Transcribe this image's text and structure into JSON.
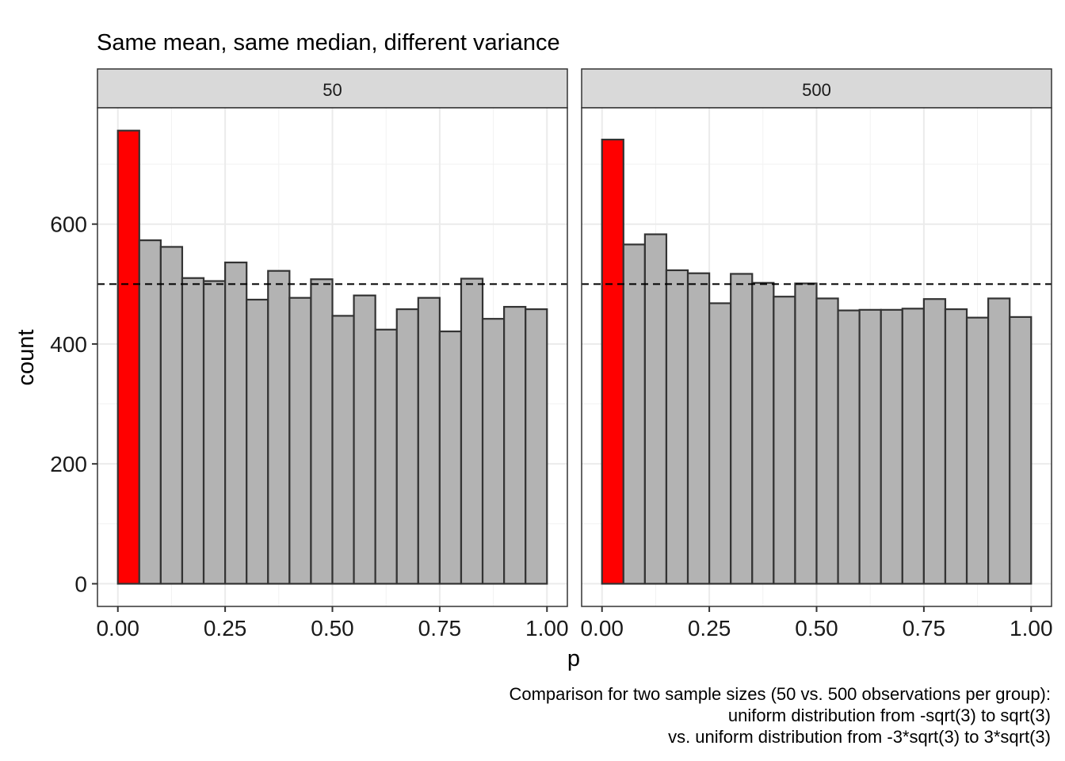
{
  "chart_data": {
    "type": "bar",
    "title": "Same mean, same median, different variance",
    "xlabel": "p",
    "ylabel": "count",
    "x_ticks": [
      "0.00",
      "0.25",
      "0.50",
      "0.75",
      "1.00"
    ],
    "x_tick_values": [
      0,
      0.25,
      0.5,
      0.75,
      1.0
    ],
    "y_ticks": [
      "0",
      "200",
      "400",
      "600"
    ],
    "y_tick_values": [
      0,
      200,
      400,
      600
    ],
    "xlim": [
      -0.0475,
      1.0475
    ],
    "ylim": [
      -37.8,
      794
    ],
    "bin_width": 0.05,
    "bin_centers": [
      0.025,
      0.075,
      0.125,
      0.175,
      0.225,
      0.275,
      0.325,
      0.375,
      0.425,
      0.475,
      0.525,
      0.575,
      0.625,
      0.675,
      0.725,
      0.775,
      0.825,
      0.875,
      0.925,
      0.975
    ],
    "reference_line": 500,
    "highlight_color": "#FF0000",
    "bar_color": "#B3B3B3",
    "outline_color": "#333333",
    "grid": true,
    "facets": [
      {
        "label": "50",
        "values": [
          756,
          573,
          562,
          510,
          505,
          536,
          474,
          522,
          477,
          508,
          447,
          481,
          424,
          458,
          477,
          421,
          509,
          442,
          462,
          458
        ]
      },
      {
        "label": "500",
        "values": [
          741,
          566,
          583,
          523,
          518,
          468,
          517,
          502,
          479,
          501,
          476,
          456,
          457,
          457,
          459,
          475,
          458,
          444,
          476,
          445
        ]
      }
    ],
    "caption": [
      "Comparison for two sample sizes (50 vs. 500 observations per group):",
      "uniform distribution from -sqrt(3) to sqrt(3)",
      "vs. uniform distribution from -3*sqrt(3) to 3*sqrt(3)"
    ]
  }
}
